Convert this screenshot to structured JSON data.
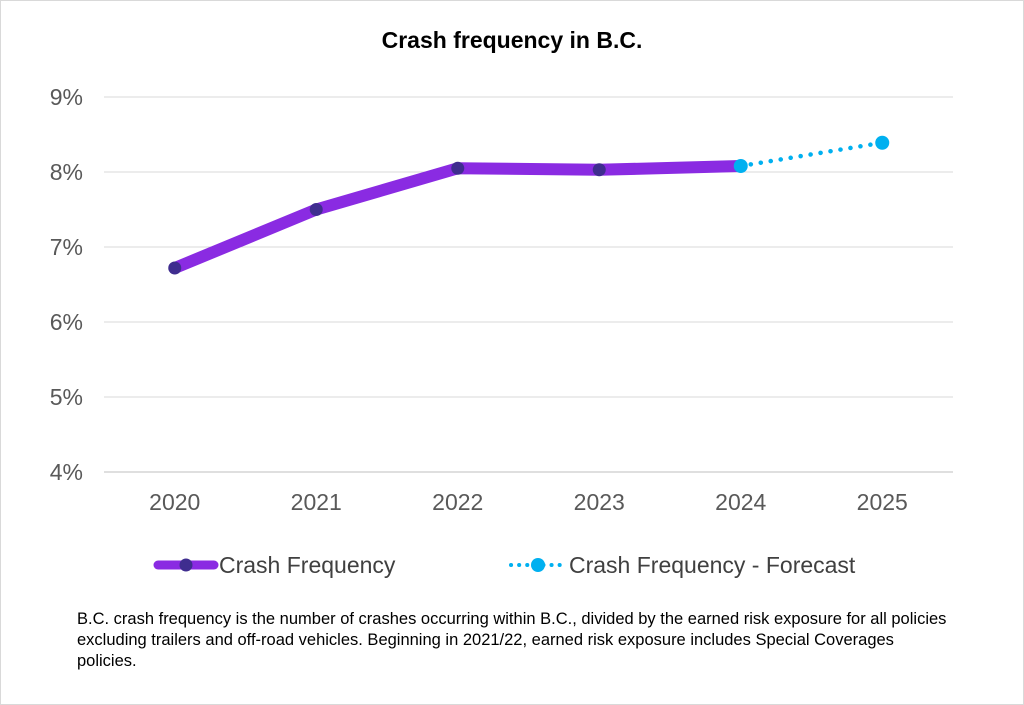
{
  "chart_data": {
    "type": "line",
    "title": "Crash frequency in B.C.",
    "xlabel": "",
    "ylabel": "",
    "x": [
      "2020",
      "2021",
      "2022",
      "2023",
      "2024",
      "2025"
    ],
    "ylim": [
      4,
      9
    ],
    "yticks": [
      "4%",
      "5%",
      "6%",
      "7%",
      "8%",
      "9%"
    ],
    "grid": true,
    "legend_position": "bottom",
    "series": [
      {
        "name": "Crash Frequency",
        "style": "solid",
        "color": "#8a2be2",
        "marker_color": "#3f2d8f",
        "x": [
          "2020",
          "2021",
          "2022",
          "2023",
          "2024"
        ],
        "values": [
          6.72,
          7.5,
          8.05,
          8.03,
          8.08
        ]
      },
      {
        "name": "Crash Frequency - Forecast",
        "style": "dotted",
        "color": "#00b0f0",
        "marker_color": "#00b0f0",
        "x": [
          "2024",
          "2025"
        ],
        "values": [
          8.08,
          8.39
        ]
      }
    ]
  },
  "footnote": "B.C. crash frequency is the number of crashes occurring within B.C., divided by the earned risk exposure for all policies excluding trailers and off-road vehicles. Beginning in 2021/22, earned risk exposure includes Special Coverages policies."
}
